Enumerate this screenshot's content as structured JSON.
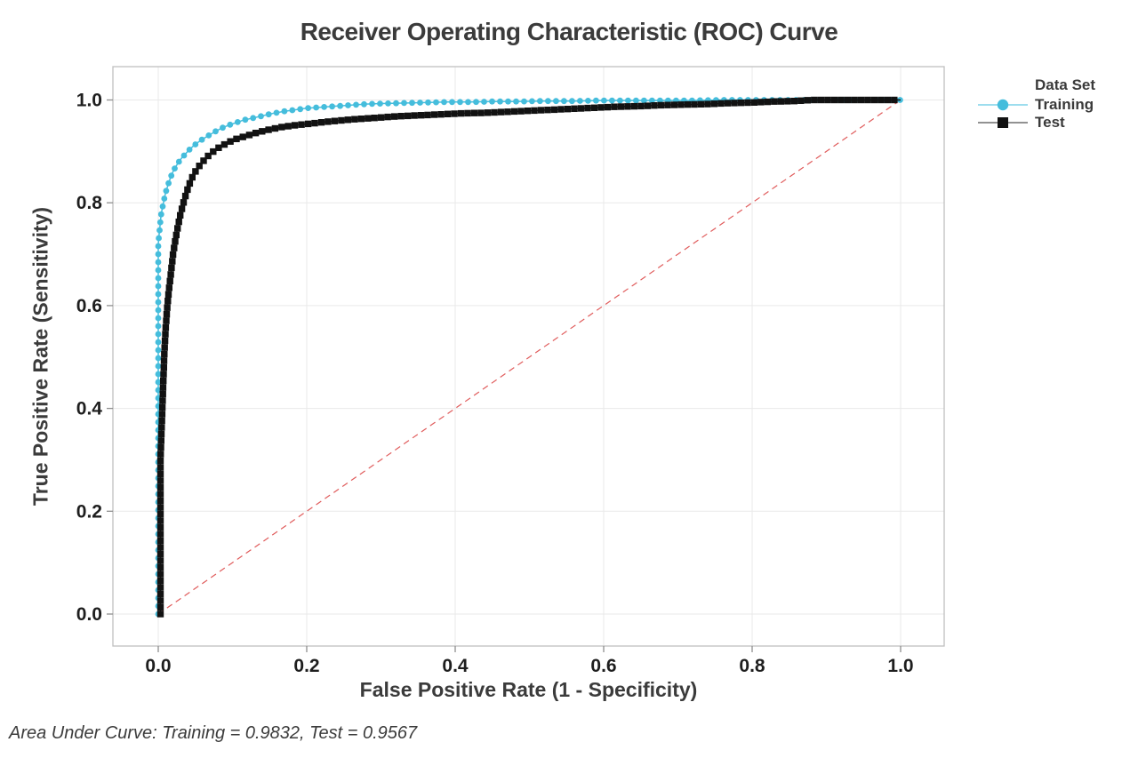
{
  "title": "Receiver Operating Characteristic (ROC) Curve",
  "footnote": "Area Under Curve: Training = 0.9832, Test = 0.9567",
  "legend": {
    "title": "Data Set",
    "items": [
      {
        "label": "Training",
        "marker": "circle",
        "color": "#45BDDC",
        "line_color": "#7DD2E8"
      },
      {
        "label": "Test",
        "marker": "square",
        "color": "#121212",
        "line_color": "#6e6e6e"
      }
    ]
  },
  "colors": {
    "grid": "#e9e9e9",
    "panel_border": "#bfbfbf",
    "tick_mark": "#8f8f8f",
    "tick_text": "#1e1e1e",
    "reference_line": "#e05c5c"
  },
  "chart_data": {
    "type": "line",
    "title": "Receiver Operating Characteristic (ROC) Curve",
    "xlabel": "False Positive Rate (1 - Specificity)",
    "ylabel": "True Positive Rate (Sensitivity)",
    "xlim": [
      0,
      1
    ],
    "ylim": [
      0,
      1
    ],
    "xticks": [
      0.0,
      0.2,
      0.4,
      0.6,
      0.8,
      1.0
    ],
    "yticks": [
      0.0,
      0.2,
      0.4,
      0.6,
      0.8,
      1.0
    ],
    "grid": true,
    "legend_position": "right-outside",
    "annotation": "Area Under Curve: Training = 0.9832, Test = 0.9567",
    "auc": {
      "Training": 0.9832,
      "Test": 0.9567
    },
    "reference_line": {
      "from": [
        0,
        0
      ],
      "to": [
        1,
        1
      ],
      "style": "dashed",
      "color": "#e05c5c"
    },
    "series": [
      {
        "name": "Training",
        "color": "#45BDDC",
        "marker": "circle",
        "points": [
          [
            0,
            0
          ],
          [
            0,
            0.03
          ],
          [
            0,
            0.06
          ],
          [
            0,
            0.09
          ],
          [
            0,
            0.12
          ],
          [
            0,
            0.15
          ],
          [
            0,
            0.18
          ],
          [
            0,
            0.21
          ],
          [
            0,
            0.24
          ],
          [
            0,
            0.27
          ],
          [
            0,
            0.3
          ],
          [
            0,
            0.33
          ],
          [
            0,
            0.36
          ],
          [
            0,
            0.39
          ],
          [
            0,
            0.42
          ],
          [
            0,
            0.45
          ],
          [
            0,
            0.48
          ],
          [
            0,
            0.51
          ],
          [
            0,
            0.54
          ],
          [
            0,
            0.57
          ],
          [
            0,
            0.6
          ],
          [
            0,
            0.63
          ],
          [
            0,
            0.66
          ],
          [
            0,
            0.69
          ],
          [
            0,
            0.72
          ],
          [
            0.001,
            0.735
          ],
          [
            0.002,
            0.75
          ],
          [
            0.003,
            0.765
          ],
          [
            0.004,
            0.778
          ],
          [
            0.006,
            0.793
          ],
          [
            0.008,
            0.807
          ],
          [
            0.01,
            0.82
          ],
          [
            0.013,
            0.834
          ],
          [
            0.016,
            0.847
          ],
          [
            0.019,
            0.858
          ],
          [
            0.023,
            0.869
          ],
          [
            0.027,
            0.878
          ],
          [
            0.031,
            0.886
          ],
          [
            0.036,
            0.894
          ],
          [
            0.041,
            0.902
          ],
          [
            0.047,
            0.91
          ],
          [
            0.053,
            0.917
          ],
          [
            0.06,
            0.924
          ],
          [
            0.068,
            0.931
          ],
          [
            0.076,
            0.938
          ],
          [
            0.085,
            0.945
          ],
          [
            0.095,
            0.951
          ],
          [
            0.105,
            0.956
          ],
          [
            0.115,
            0.961
          ],
          [
            0.125,
            0.964
          ],
          [
            0.14,
            0.969
          ],
          [
            0.155,
            0.974
          ],
          [
            0.17,
            0.978
          ],
          [
            0.185,
            0.981
          ],
          [
            0.2,
            0.984
          ],
          [
            0.22,
            0.986
          ],
          [
            0.24,
            0.988
          ],
          [
            0.26,
            0.99
          ],
          [
            0.28,
            0.992
          ],
          [
            0.3,
            0.993
          ],
          [
            0.33,
            0.994
          ],
          [
            0.36,
            0.995
          ],
          [
            0.39,
            0.996
          ],
          [
            0.42,
            0.996
          ],
          [
            0.45,
            0.997
          ],
          [
            0.48,
            0.997
          ],
          [
            0.52,
            0.998
          ],
          [
            0.56,
            0.998
          ],
          [
            0.6,
            0.999
          ],
          [
            0.64,
            0.999
          ],
          [
            0.68,
            0.999
          ],
          [
            0.72,
            0.999
          ],
          [
            0.76,
            1
          ],
          [
            0.8,
            1
          ],
          [
            0.85,
            1
          ],
          [
            0.9,
            1
          ],
          [
            0.95,
            1
          ],
          [
            1,
            1
          ]
        ]
      },
      {
        "name": "Test",
        "color": "#121212",
        "marker": "square",
        "points": [
          [
            0.003,
            0
          ],
          [
            0.003,
            0.03
          ],
          [
            0.003,
            0.06
          ],
          [
            0.003,
            0.09
          ],
          [
            0.003,
            0.12
          ],
          [
            0.003,
            0.15
          ],
          [
            0.003,
            0.18
          ],
          [
            0.003,
            0.21
          ],
          [
            0.003,
            0.24
          ],
          [
            0.003,
            0.27
          ],
          [
            0.003,
            0.3
          ],
          [
            0.004,
            0.34
          ],
          [
            0.005,
            0.38
          ],
          [
            0.006,
            0.42
          ],
          [
            0.007,
            0.46
          ],
          [
            0.008,
            0.5
          ],
          [
            0.009,
            0.53
          ],
          [
            0.01,
            0.555
          ],
          [
            0.011,
            0.575
          ],
          [
            0.012,
            0.595
          ],
          [
            0.014,
            0.625
          ],
          [
            0.016,
            0.65
          ],
          [
            0.018,
            0.675
          ],
          [
            0.02,
            0.7
          ],
          [
            0.023,
            0.727
          ],
          [
            0.026,
            0.75
          ],
          [
            0.029,
            0.772
          ],
          [
            0.033,
            0.795
          ],
          [
            0.037,
            0.815
          ],
          [
            0.041,
            0.833
          ],
          [
            0.046,
            0.85
          ],
          [
            0.051,
            0.863
          ],
          [
            0.057,
            0.875
          ],
          [
            0.063,
            0.885
          ],
          [
            0.07,
            0.895
          ],
          [
            0.078,
            0.904
          ],
          [
            0.086,
            0.911
          ],
          [
            0.095,
            0.918
          ],
          [
            0.105,
            0.924
          ],
          [
            0.118,
            0.93
          ],
          [
            0.132,
            0.936
          ],
          [
            0.148,
            0.942
          ],
          [
            0.165,
            0.947
          ],
          [
            0.185,
            0.951
          ],
          [
            0.205,
            0.954
          ],
          [
            0.23,
            0.958
          ],
          [
            0.26,
            0.962
          ],
          [
            0.29,
            0.965
          ],
          [
            0.32,
            0.968
          ],
          [
            0.35,
            0.97
          ],
          [
            0.38,
            0.972
          ],
          [
            0.41,
            0.974
          ],
          [
            0.44,
            0.975
          ],
          [
            0.47,
            0.977
          ],
          [
            0.5,
            0.979
          ],
          [
            0.53,
            0.981
          ],
          [
            0.56,
            0.983
          ],
          [
            0.59,
            0.985
          ],
          [
            0.62,
            0.987
          ],
          [
            0.65,
            0.988
          ],
          [
            0.68,
            0.99
          ],
          [
            0.71,
            0.991
          ],
          [
            0.74,
            0.992
          ],
          [
            0.77,
            0.994
          ],
          [
            0.8,
            0.995
          ],
          [
            0.83,
            0.997
          ],
          [
            0.86,
            0.998
          ],
          [
            0.88,
            1
          ],
          [
            0.92,
            1
          ],
          [
            0.96,
            1
          ],
          [
            1,
            1
          ]
        ]
      }
    ]
  }
}
